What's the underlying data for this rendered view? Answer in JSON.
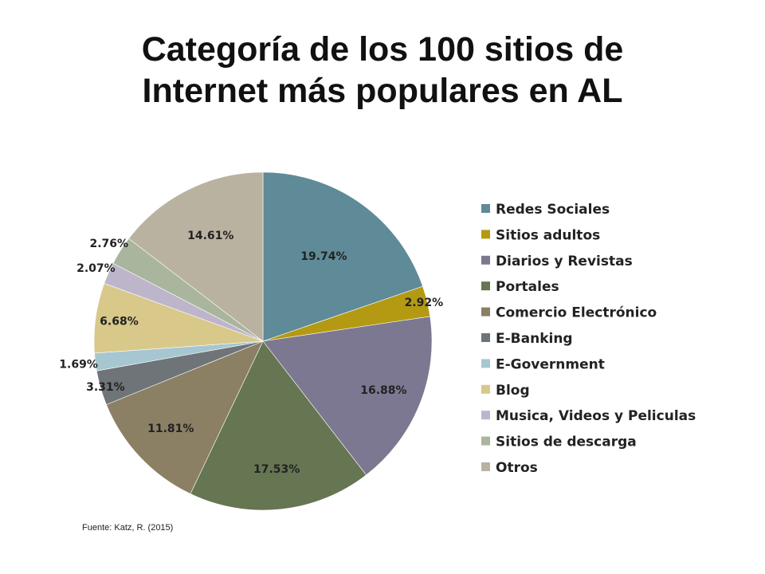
{
  "title": {
    "line1": "Categoría de los 100 sitios de",
    "line2": "Internet más populares en AL"
  },
  "source": "Fuente: Katz, R. (2015)",
  "chart_data": {
    "type": "pie",
    "title": "Categoría de los 100 sitios de Internet más populares en AL",
    "legend_position": "right",
    "categories": [
      "Redes Sociales",
      "Sitios adultos",
      "Diarios y Revistas",
      "Portales",
      "Comercio Electrónico",
      "E-Banking",
      "E-Government",
      "Blog",
      "Musica, Videos y Peliculas",
      "Sitios de descarga",
      "Otros"
    ],
    "values": [
      19.74,
      2.92,
      16.88,
      17.53,
      11.81,
      3.31,
      1.69,
      6.68,
      2.07,
      2.76,
      14.61
    ],
    "labels": [
      "19.74%",
      "2.92%",
      "16.88%",
      "17.53%",
      "11.81%",
      "3.31%",
      "1.69%",
      "6.68%",
      "2.07%",
      "2.76%",
      "14.61%"
    ],
    "colors": [
      "#5f8a98",
      "#b39a12",
      "#7c7891",
      "#667552",
      "#8b7f64",
      "#6e7477",
      "#a6c7d1",
      "#d8c88a",
      "#bdb6cb",
      "#a9b59c",
      "#bab2a0"
    ]
  }
}
